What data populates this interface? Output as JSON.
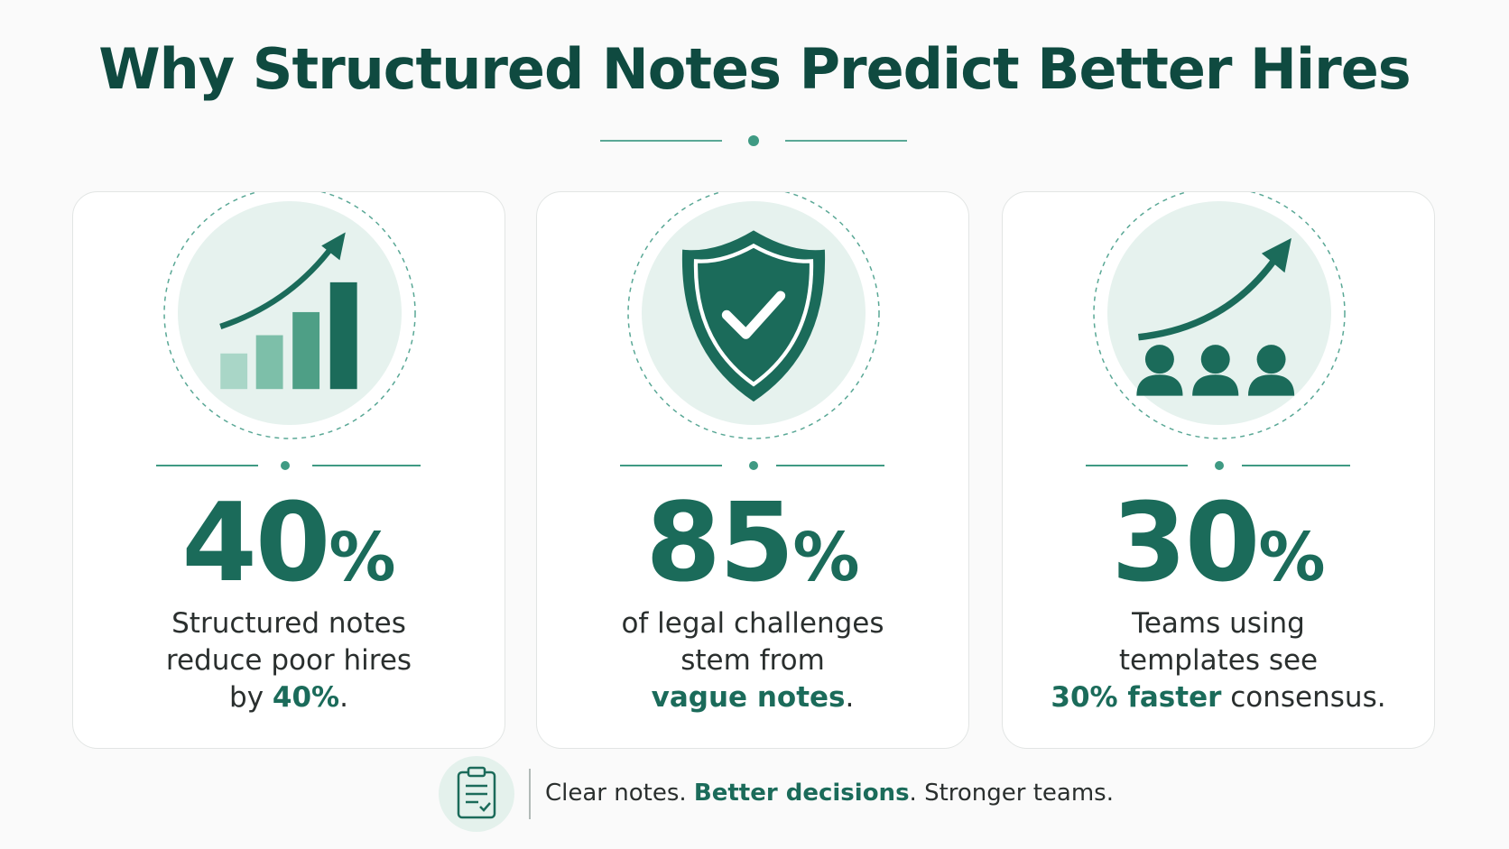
{
  "header": {
    "title": "Why Structured Notes Predict Better Hires"
  },
  "cards": [
    {
      "stat_number": "40",
      "stat_unit": "%",
      "description": [
        [
          {
            "text": "Structured notes"
          }
        ],
        [
          {
            "text": "reduce poor hires"
          }
        ],
        [
          {
            "text": "by "
          },
          {
            "text": "40%",
            "emphasis": true
          },
          {
            "text": "."
          }
        ]
      ]
    },
    {
      "stat_number": "85",
      "stat_unit": "%",
      "description": [
        [
          {
            "text": "of legal challenges"
          }
        ],
        [
          {
            "text": "stem from"
          }
        ],
        [
          {
            "text": "vague notes",
            "emphasis": true
          },
          {
            "text": "."
          }
        ]
      ]
    },
    {
      "stat_number": "30",
      "stat_unit": "%",
      "description": [
        [
          {
            "text": "Teams using"
          }
        ],
        [
          {
            "text": "templates see"
          }
        ],
        [
          {
            "text": "30% faster",
            "emphasis": true
          },
          {
            "text": " consensus."
          }
        ]
      ]
    }
  ],
  "footer": {
    "tagline": [
      {
        "text": "Clear notes. "
      },
      {
        "text": "Better decisions",
        "emphasis": true
      },
      {
        "text": ". Stronger teams."
      }
    ]
  }
}
